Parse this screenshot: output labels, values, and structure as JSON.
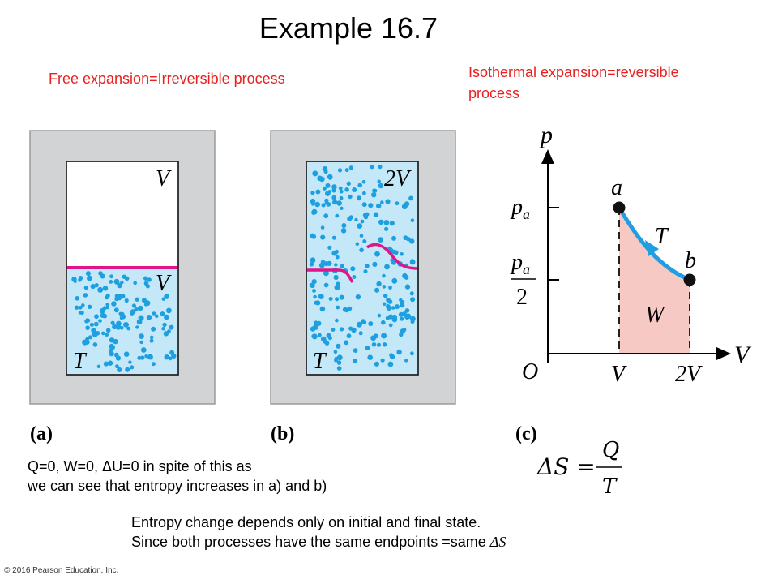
{
  "title": "Example 16.7",
  "labels": {
    "free_expansion": "Free expansion=Irreversible process",
    "isothermal_expansion_line1": "Isothermal expansion=reversible",
    "isothermal_expansion_line2": "process"
  },
  "panel_a": {
    "label": "(a)",
    "upper_volume": "V",
    "lower_volume": "V",
    "temperature": "T"
  },
  "panel_b": {
    "label": "(b)",
    "volume": "2V",
    "temperature": "T"
  },
  "panel_c": {
    "label": "(c)",
    "y_axis": "p",
    "x_axis": "V",
    "origin": "O",
    "tick_pa": "p",
    "tick_pa_sub": "a",
    "tick_pa_half_num": "p",
    "tick_pa_half_sub": "a",
    "tick_pa_half_den": "2",
    "tick_v": "V",
    "tick_2v": "2V",
    "point_a": "a",
    "point_b": "b",
    "curve_label": "T",
    "area_label": "W"
  },
  "formula": {
    "lhs": "ΔS =",
    "numerator": "Q",
    "denominator": "T"
  },
  "notes": {
    "line1": "Q=0, W=0, ΔU=0 in spite of this as",
    "line2": "we can see that entropy increases in a) and b)",
    "line3": "Entropy change depends only on initial and final state.",
    "line4_prefix": "Since both processes have the same endpoints =same ",
    "line4_symbol": "ΔS"
  },
  "copyright": "© 2016 Pearson Education, Inc.",
  "colors": {
    "red_text": "#e8201f",
    "gas_fill": "#c4e8f8",
    "dots": "#1e9fe0",
    "partition": "#e0158a",
    "container": "#d2d3d5",
    "area_fill": "#f7c9c5",
    "curve": "#1f9ee2"
  }
}
